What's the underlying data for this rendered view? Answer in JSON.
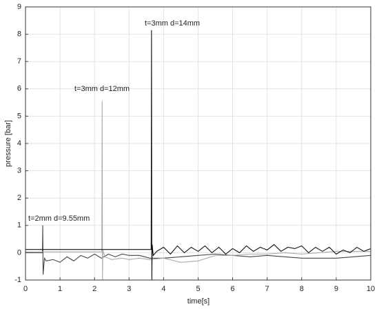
{
  "chart_data": {
    "type": "line",
    "xlabel": "time[s]",
    "ylabel": "pressure [bar]",
    "xlim": [
      0,
      10
    ],
    "ylim": [
      -1,
      9
    ],
    "xticks": [
      0,
      1,
      2,
      3,
      4,
      5,
      6,
      7,
      8,
      9,
      10
    ],
    "yticks": [
      -1,
      0,
      1,
      2,
      3,
      4,
      5,
      6,
      7,
      8,
      9
    ],
    "grid": true,
    "annotations": [
      "t=3mm d=14mm",
      "t=3mm d=12mm",
      "t=2mm d=9.55mm"
    ],
    "series": [
      {
        "color": "#111111",
        "x": [
          0,
          0.5,
          1,
          1.5,
          2,
          2.5,
          3,
          3.5,
          3.64,
          3.65,
          3.66,
          3.67,
          3.7,
          3.8,
          4,
          4.2,
          4.4,
          4.6,
          4.8,
          5,
          5.2,
          5.4,
          5.6,
          5.8,
          6,
          6.2,
          6.4,
          6.6,
          6.8,
          7,
          7.2,
          7.4,
          7.6,
          7.8,
          8,
          8.2,
          8.4,
          8.6,
          8.8,
          9,
          9.2,
          9.4,
          9.6,
          9.8,
          10
        ],
        "values": [
          0.12,
          0.12,
          0.12,
          0.12,
          0.12,
          0.12,
          0.12,
          0.12,
          0.12,
          8.15,
          -1,
          0.3,
          -0.1,
          0.05,
          0.2,
          -0.05,
          0.25,
          0,
          0.2,
          0.05,
          0.25,
          0,
          0.2,
          -0.05,
          0.15,
          0,
          0.25,
          0.05,
          0.2,
          0.1,
          0.3,
          0.05,
          0.2,
          0.15,
          0.25,
          0,
          0.2,
          0.05,
          0.2,
          -0.05,
          0.1,
          0,
          0.2,
          0.05,
          0.15
        ]
      },
      {
        "color": "#aaaaaa",
        "x": [
          0,
          0.5,
          1,
          1.5,
          2,
          2.21,
          2.22,
          2.23,
          2.24,
          2.3,
          2.5,
          2.8,
          3,
          3.3,
          3.6,
          4,
          4.5,
          5,
          5.5,
          6,
          6.5,
          7,
          7.5,
          8,
          8.5,
          9,
          9.5,
          10
        ],
        "values": [
          0.03,
          0.03,
          0.03,
          0.03,
          0.03,
          0.03,
          5.55,
          -1,
          0.1,
          -0.15,
          -0.25,
          -0.2,
          -0.25,
          -0.2,
          -0.25,
          -0.2,
          -0.35,
          -0.3,
          -0.1,
          -0.1,
          -0.05,
          -0.05,
          0,
          -0.05,
          0,
          0.05,
          0.05,
          0.05
        ]
      },
      {
        "color": "#444444",
        "x": [
          0,
          0.49,
          0.5,
          0.51,
          0.55,
          0.6,
          0.8,
          1,
          1.2,
          1.4,
          1.6,
          1.8,
          2,
          2.2,
          2.4,
          2.6,
          2.8,
          3,
          3.3,
          3.6,
          4,
          4.5,
          5,
          5.5,
          6,
          6.5,
          7,
          7.5,
          8,
          8.5,
          9,
          9.5,
          10
        ],
        "values": [
          0,
          0,
          1,
          -0.8,
          -0.2,
          -0.3,
          -0.25,
          -0.35,
          -0.15,
          -0.3,
          -0.1,
          -0.2,
          -0.05,
          -0.2,
          -0.05,
          -0.15,
          -0.05,
          -0.1,
          -0.1,
          -0.2,
          -0.2,
          -0.15,
          -0.1,
          -0.05,
          -0.1,
          -0.15,
          -0.1,
          -0.15,
          -0.2,
          -0.2,
          -0.2,
          -0.15,
          -0.1
        ]
      }
    ]
  }
}
